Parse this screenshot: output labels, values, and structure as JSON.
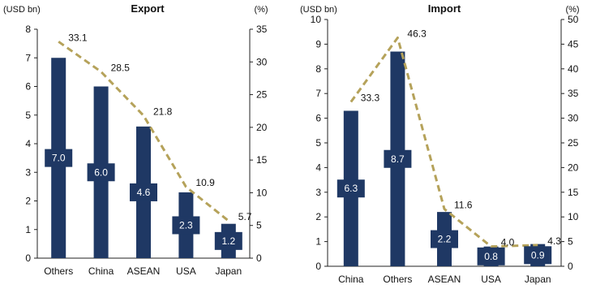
{
  "colors": {
    "bar": "#1f3864",
    "line": "#b5a25a",
    "axis": "#222222"
  },
  "chart_data": [
    {
      "type": "bar",
      "title": "Export",
      "y_unit_left": "(USD bn)",
      "y_unit_right": "(%)",
      "categories": [
        "Others",
        "China",
        "ASEAN",
        "USA",
        "Japan"
      ],
      "series": [
        {
          "name": "",
          "type": "bar",
          "axis": "left",
          "values": [
            7.0,
            6.0,
            4.6,
            2.3,
            1.2
          ]
        },
        {
          "name": "",
          "type": "line",
          "axis": "right",
          "style": "dashed",
          "values": [
            33.1,
            28.5,
            21.8,
            10.9,
            5.7
          ]
        }
      ],
      "bar_labels": [
        "7.0",
        "6.0",
        "4.6",
        "2.3",
        "1.2"
      ],
      "line_labels": [
        "33.1",
        "28.5",
        "21.8",
        "10.9",
        "5.7"
      ],
      "ylim_left": [
        0,
        8
      ],
      "yticks_left": [
        "0",
        "1",
        "2",
        "3",
        "4",
        "5",
        "6",
        "7",
        "8"
      ],
      "ylim_right": [
        0,
        35
      ],
      "yticks_right": [
        "0",
        "5",
        "10",
        "15",
        "20",
        "25",
        "30",
        "35"
      ],
      "grid": false,
      "legend": "none"
    },
    {
      "type": "bar",
      "title": "Import",
      "y_unit_left": "(USD bn)",
      "y_unit_right": "(%)",
      "categories": [
        "China",
        "Others",
        "ASEAN",
        "USA",
        "Japan"
      ],
      "series": [
        {
          "name": "",
          "type": "bar",
          "axis": "left",
          "values": [
            6.3,
            8.7,
            2.2,
            0.8,
            0.9
          ]
        },
        {
          "name": "",
          "type": "line",
          "axis": "right",
          "style": "dashed",
          "values": [
            33.3,
            46.3,
            11.6,
            4.0,
            4.3
          ]
        }
      ],
      "bar_labels": [
        "6.3",
        "8.7",
        "2.2",
        "0.8",
        "0.9"
      ],
      "line_labels": [
        "33.3",
        "46.3",
        "11.6",
        "4.0",
        "4.3"
      ],
      "ylim_left": [
        0,
        10
      ],
      "yticks_left": [
        "0",
        "1",
        "2",
        "3",
        "4",
        "5",
        "6",
        "7",
        "8",
        "9",
        "10"
      ],
      "ylim_right": [
        0,
        50
      ],
      "yticks_right": [
        "0",
        "5",
        "10",
        "15",
        "20",
        "25",
        "30",
        "35",
        "40",
        "45",
        "50"
      ],
      "grid": false,
      "legend": "none"
    }
  ]
}
